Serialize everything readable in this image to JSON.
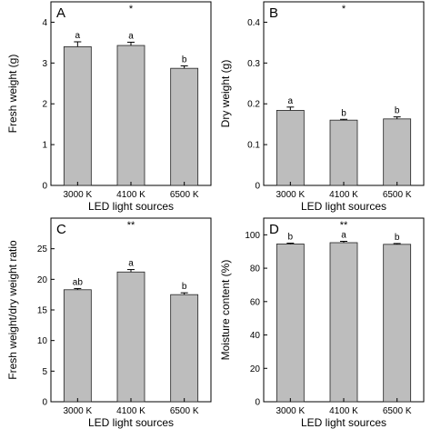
{
  "chart_data": [
    {
      "type": "bar",
      "panel": "A",
      "significance": "*",
      "categories": [
        "3000 K",
        "4100 K",
        "6500 K"
      ],
      "values": [
        3.4,
        3.43,
        2.87
      ],
      "errors": [
        0.12,
        0.08,
        0.06
      ],
      "letters": [
        "a",
        "a",
        "b"
      ],
      "xlabel": "LED light sources",
      "ylabel": "Fresh weight (g)",
      "ylim": [
        0,
        4.5
      ],
      "yticks": [
        0,
        1,
        2,
        3,
        4
      ],
      "grid": false
    },
    {
      "type": "bar",
      "panel": "B",
      "significance": "*",
      "categories": [
        "3000 K",
        "4100 K",
        "6500 K"
      ],
      "values": [
        0.184,
        0.16,
        0.163
      ],
      "errors": [
        0.008,
        0.002,
        0.005
      ],
      "letters": [
        "a",
        "b",
        "b"
      ],
      "xlabel": "LED light sources",
      "ylabel": "Dry weight (g)",
      "ylim": [
        0,
        0.45
      ],
      "yticks": [
        0,
        0.1,
        0.2,
        0.3,
        0.4
      ],
      "grid": false
    },
    {
      "type": "bar",
      "panel": "C",
      "significance": "**",
      "categories": [
        "3000 K",
        "4100 K",
        "6500 K"
      ],
      "values": [
        18.3,
        21.2,
        17.5
      ],
      "errors": [
        0.2,
        0.4,
        0.3
      ],
      "letters": [
        "ab",
        "a",
        "b"
      ],
      "xlabel": "LED light sources",
      "ylabel": "Fresh weight/dry weight ratio",
      "ylim": [
        0,
        30
      ],
      "yticks": [
        0,
        5,
        10,
        15,
        20,
        25
      ],
      "grid": false
    },
    {
      "type": "bar",
      "panel": "D",
      "significance": "**",
      "categories": [
        "3000 K",
        "4100 K",
        "6500 K"
      ],
      "values": [
        94.5,
        95.3,
        94.3
      ],
      "errors": [
        0.5,
        0.8,
        0.5
      ],
      "letters": [
        "b",
        "a",
        "b"
      ],
      "xlabel": "LED light sources",
      "ylabel": "Moisture content (%)",
      "ylim": [
        0,
        110
      ],
      "yticks": [
        0,
        20,
        40,
        60,
        80,
        100
      ],
      "grid": false
    }
  ]
}
